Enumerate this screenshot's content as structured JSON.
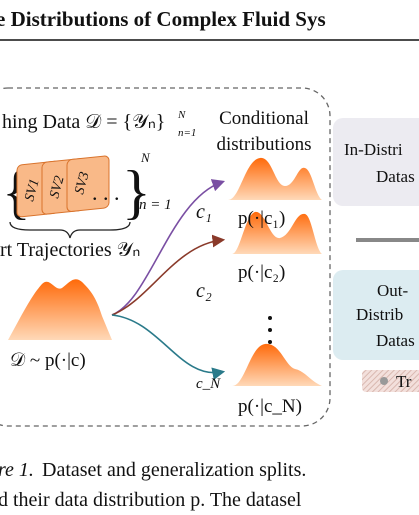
{
  "header": {
    "title": "e Distributions of Complex Fluid Sys"
  },
  "figure": {
    "training_data": {
      "label": "hing Data 𝒟 = {𝒴ₙ}",
      "sup": "N",
      "sub": "n=1"
    },
    "cards": [
      "SV1",
      "SV2",
      "SV3"
    ],
    "ellipsis": ". . .",
    "brace_top": "N",
    "brace_bottom": "n = 1",
    "trajectories": "rt Trajectories 𝒴ₙ",
    "dataset": "𝒟 ~ p(·|c)",
    "conditional": [
      "Conditional",
      "distributions"
    ],
    "conditions": [
      {
        "c": "c₁",
        "p": "p(·|c₁)"
      },
      {
        "c": "c₂",
        "p": "p(·|c₂)"
      },
      {
        "c": "c_N",
        "p": "p(·|c_N)"
      }
    ],
    "splits": [
      {
        "lines": [
          "In-Distri",
          "Datas"
        ]
      },
      {
        "lines": [
          "Out-",
          "Distrib",
          "Datas"
        ]
      }
    ],
    "legend": "Tr"
  },
  "caption": {
    "label": "re 1.",
    "text": "Dataset and generalization splits.",
    "line2": "d their data distribution p. The datasel"
  }
}
